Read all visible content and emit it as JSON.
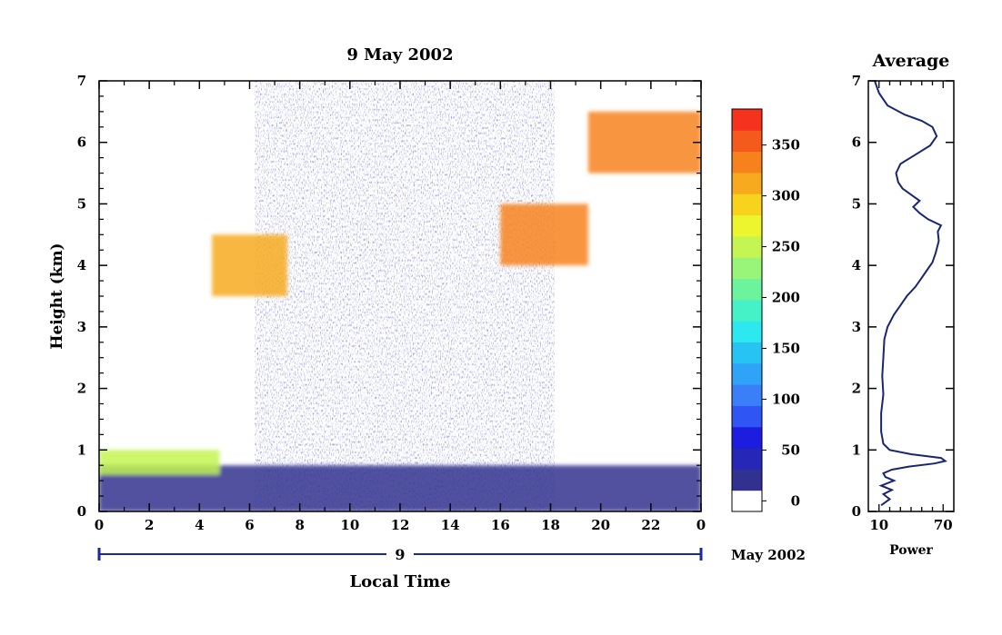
{
  "chart_data": [
    {
      "type": "heatmap",
      "title": "9 May 2002",
      "xlabel": "Local Time",
      "ylabel": "Height (km)",
      "xlim": [
        0,
        24
      ],
      "ylim": [
        0,
        7
      ],
      "x_ticks": [
        "0",
        "2",
        "4",
        "6",
        "8",
        "10",
        "12",
        "14",
        "16",
        "18",
        "20",
        "22",
        "0"
      ],
      "y_ticks": [
        "0",
        "1",
        "2",
        "3",
        "4",
        "5",
        "6",
        "7"
      ],
      "date_bar": {
        "day": "9",
        "month_year": "May 2002"
      },
      "colorbar": {
        "ticks": [
          "0",
          "50",
          "100",
          "150",
          "200",
          "250",
          "300",
          "350"
        ],
        "range": [
          0,
          375
        ],
        "colors": [
          "#ffffff",
          "#31318f",
          "#2727b7",
          "#1d1ddf",
          "#2f55f5",
          "#3a7ff7",
          "#2fa3f7",
          "#27c4f3",
          "#2ee8ef",
          "#45f2c7",
          "#6cf49d",
          "#98f57a",
          "#c4f552",
          "#ecf52d",
          "#f7d31d",
          "#f7aa1d",
          "#f7821d",
          "#f55a1d",
          "#f5321d"
        ]
      },
      "layers": [
        {
          "name": "boundary-layer",
          "x_range": [
            0,
            24
          ],
          "height_km": [
            0,
            0.75
          ],
          "level": 20
        },
        {
          "name": "morning-cloud-top",
          "x_range": [
            0,
            4.8
          ],
          "height_km": [
            0.6,
            1.0
          ],
          "level": 260
        },
        {
          "name": "midlevel-cloud",
          "x_range": [
            4.5,
            7.5
          ],
          "height_km": [
            3.5,
            4.5
          ],
          "level": 320
        },
        {
          "name": "rising-layer",
          "x_range": [
            16,
            19.5
          ],
          "height_km": [
            4.0,
            5.0
          ],
          "level": 330
        },
        {
          "name": "upper-cloud",
          "x_range": [
            19.5,
            24
          ],
          "height_km": [
            5.5,
            6.5
          ],
          "level": 340
        }
      ]
    },
    {
      "type": "line",
      "title": "Average",
      "xlabel": "Power",
      "x_ticks": [
        "10",
        "70"
      ],
      "y_ticks": [
        "0",
        "1",
        "2",
        "3",
        "4",
        "5",
        "6",
        "7"
      ],
      "xlim": [
        0,
        80
      ],
      "ylim": [
        0,
        7
      ],
      "series": [
        {
          "x": [
            12,
            20,
            14,
            22,
            12,
            24,
            16,
            14,
            22,
            38,
            62,
            72,
            68,
            40,
            20,
            14,
            12,
            12,
            14,
            13,
            14,
            15,
            18,
            24,
            30,
            36,
            44,
            50,
            56,
            60,
            63,
            66,
            65,
            68,
            56,
            48,
            42,
            48,
            40,
            32,
            28,
            26,
            30,
            44,
            58,
            64,
            60,
            50,
            34,
            18,
            10,
            6
          ],
          "y": [
            0.1,
            0.2,
            0.28,
            0.35,
            0.42,
            0.5,
            0.56,
            0.62,
            0.68,
            0.73,
            0.78,
            0.82,
            0.87,
            0.93,
            1.0,
            1.1,
            1.3,
            1.6,
            1.9,
            2.2,
            2.5,
            2.8,
            3.0,
            3.2,
            3.35,
            3.5,
            3.65,
            3.8,
            3.95,
            4.05,
            4.2,
            4.4,
            4.55,
            4.65,
            4.75,
            4.85,
            4.95,
            5.05,
            5.15,
            5.25,
            5.35,
            5.5,
            5.65,
            5.8,
            5.95,
            6.1,
            6.25,
            6.35,
            6.45,
            6.6,
            6.8,
            7.0
          ]
        }
      ]
    }
  ]
}
